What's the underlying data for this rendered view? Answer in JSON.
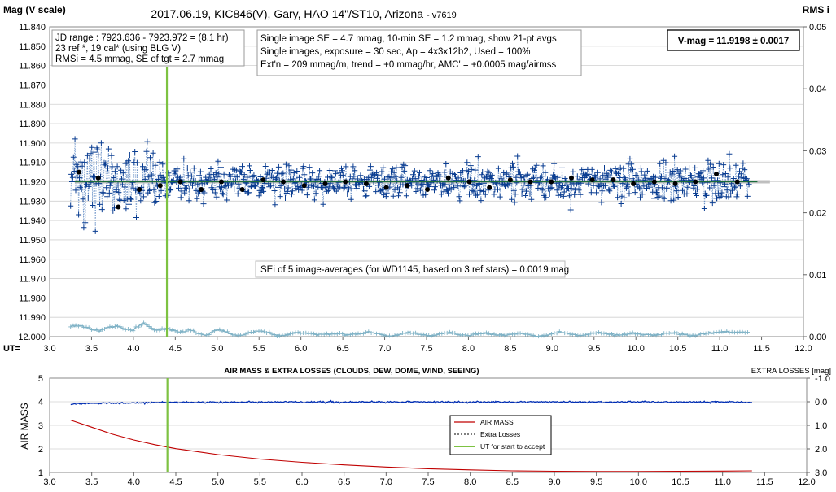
{
  "chart_data": [
    {
      "type": "scatter",
      "title": "2017.06.19,  KIC846(V),  Gary,  HAO  14\"/ST10, Arizona",
      "version": "- v7619",
      "ylabel_left": "Mag (V scale)",
      "ylabel_right": "RMS i",
      "xlabel": "UT=",
      "xlim": [
        3.0,
        12.0
      ],
      "ylim_left": [
        11.84,
        12.0
      ],
      "ylim_left_reversed": true,
      "ylim_right": [
        0.0,
        0.05
      ],
      "x_ticks": [
        "3.0",
        "3.5",
        "4.0",
        "4.5",
        "5.0",
        "5.5",
        "6.0",
        "6.5",
        "7.0",
        "7.5",
        "8.0",
        "8.5",
        "9.0",
        "9.5",
        "10.0",
        "10.5",
        "11.0",
        "11.5",
        "12.0"
      ],
      "y_left_ticks": [
        "11.840",
        "11.850",
        "11.860",
        "11.870",
        "11.880",
        "11.890",
        "11.900",
        "11.910",
        "11.920",
        "11.930",
        "11.940",
        "11.950",
        "11.960",
        "11.970",
        "11.980",
        "11.990",
        "12.000"
      ],
      "y_right_ticks": [
        "0.05",
        "0.04",
        "0.03",
        "0.02",
        "0.01",
        "0.00"
      ],
      "info_box_1": [
        "JD range : 7923.636 - 7923.972 = (8.1 hr)",
        "23 ref *, 19 cal* (using BLG V)",
        "RMSi = 4.5 mmag, SE of tgt = 2.7 mmag"
      ],
      "info_box_2": [
        "Single image SE = 4.7 mmag, 10-min SE = 1.2 mmag, show 21-pt avgs",
        "Single images, exposure = 30 sec, Ap = 4x3x12b2, Used = 100%",
        "Ext'n = 209 mmag/m, trend = +0 mmag/hr, AMC' = +0.0005 mag/airmss"
      ],
      "vmag_box": "V-mag = 11.9198 ± 0.0017",
      "annotation": "SEi of 5 image-averages (for WD1145, based on 3 ref stars) = 0.0019 mag",
      "ut_accept": 4.4,
      "ut_range": [
        3.25,
        11.35
      ],
      "mean_mag": 11.92,
      "averages": {
        "x": [
          3.35,
          3.58,
          3.82,
          4.07,
          4.32,
          4.56,
          4.81,
          5.05,
          5.3,
          5.55,
          5.79,
          6.04,
          6.29,
          6.53,
          6.78,
          7.02,
          7.27,
          7.51,
          7.76,
          8.01,
          8.25,
          8.5,
          8.74,
          8.99,
          9.23,
          9.48,
          9.73,
          9.97,
          10.22,
          10.47,
          10.71,
          10.96,
          11.21
        ],
        "y": [
          11.915,
          11.918,
          11.933,
          11.924,
          11.922,
          11.92,
          11.924,
          11.92,
          11.924,
          11.919,
          11.92,
          11.922,
          11.921,
          11.92,
          11.921,
          11.923,
          11.922,
          11.924,
          11.918,
          11.92,
          11.923,
          11.919,
          11.92,
          11.92,
          11.918,
          11.919,
          11.919,
          11.921,
          11.92,
          11.921,
          11.92,
          11.916,
          11.92
        ]
      },
      "rms": {
        "x": [
          3.25,
          3.4,
          3.6,
          3.8,
          4.0,
          4.12,
          4.25,
          4.4,
          4.55,
          4.7,
          4.85,
          5.0,
          5.2,
          5.5,
          5.8,
          6.1,
          6.4,
          6.7,
          7.0,
          7.3,
          7.6,
          7.9,
          8.2,
          8.5,
          8.8,
          9.1,
          9.4,
          9.7,
          10.0,
          10.3,
          10.6,
          10.9,
          11.1,
          11.35
        ],
        "y": [
          0.0015,
          0.0018,
          0.001,
          0.0017,
          0.0012,
          0.002,
          0.001,
          0.0016,
          0.0005,
          0.001,
          0.0004,
          0.0009,
          0.0004,
          0.0007,
          0.0003,
          0.0006,
          0.0003,
          0.0006,
          0.0003,
          0.0005,
          0.0003,
          0.0005,
          0.0003,
          0.0005,
          0.0002,
          0.0005,
          0.0004,
          0.0005,
          0.0003,
          0.0005,
          0.0004,
          0.0004,
          0.001,
          0.0004
        ]
      }
    },
    {
      "type": "line",
      "title": "AIR MASS & EXTRA LOSSES (CLOUDS, DEW, DOME, WIND, SEEING)",
      "ylabel_left": "AIR MASS",
      "ylabel_right": "EXTRA LOSSES [mag]",
      "xlim": [
        3.0,
        12.0
      ],
      "ylim_left": [
        1,
        5
      ],
      "ylim_right": [
        -1.0,
        3.0
      ],
      "ylim_right_reversed": true,
      "x_ticks": [
        "3.0",
        "3.5",
        "4.0",
        "4.5",
        "5.0",
        "5.5",
        "6.0",
        "6.5",
        "7.0",
        "7.5",
        "8.0",
        "8.5",
        "9.0",
        "9.5",
        "10.0",
        "10.5",
        "11.0",
        "11.5",
        "12.0"
      ],
      "y_left_ticks": [
        "1",
        "2",
        "3",
        "4",
        "5"
      ],
      "y_right_ticks": [
        "-1.0",
        "0.0",
        "1.0",
        "2.0",
        "3.0"
      ],
      "legend": [
        "AIR MASS",
        "Extra Losses",
        "UT for start to accept"
      ],
      "series": [
        {
          "name": "AIR MASS",
          "color": "#c00000",
          "x": [
            3.25,
            3.5,
            3.75,
            4.0,
            4.25,
            4.5,
            5.0,
            5.5,
            6.0,
            6.5,
            7.0,
            7.5,
            8.0,
            8.5,
            9.0,
            9.5,
            10.0,
            10.5,
            11.0,
            11.35
          ],
          "y": [
            3.22,
            2.92,
            2.62,
            2.38,
            2.18,
            2.01,
            1.76,
            1.57,
            1.43,
            1.32,
            1.23,
            1.16,
            1.11,
            1.07,
            1.05,
            1.04,
            1.04,
            1.05,
            1.06,
            1.07
          ]
        },
        {
          "name": "Extra Losses",
          "color": "#002db3",
          "x": [
            3.25,
            3.5,
            4.0,
            4.5,
            5.0,
            6.0,
            7.0,
            8.0,
            9.0,
            10.0,
            11.0,
            11.35
          ],
          "y": [
            0.1,
            0.07,
            0.05,
            0.03,
            0.02,
            0.01,
            0.01,
            0.01,
            0.01,
            0.01,
            0.01,
            0.02
          ]
        }
      ],
      "ut_accept": 4.4
    }
  ],
  "colors": {
    "scatter": "#0a3d91",
    "scatter_line": "#6f95c9",
    "rms": "#7fb2c6",
    "mean_band": "#b9b9b9",
    "accept_line": "#7dc242"
  }
}
